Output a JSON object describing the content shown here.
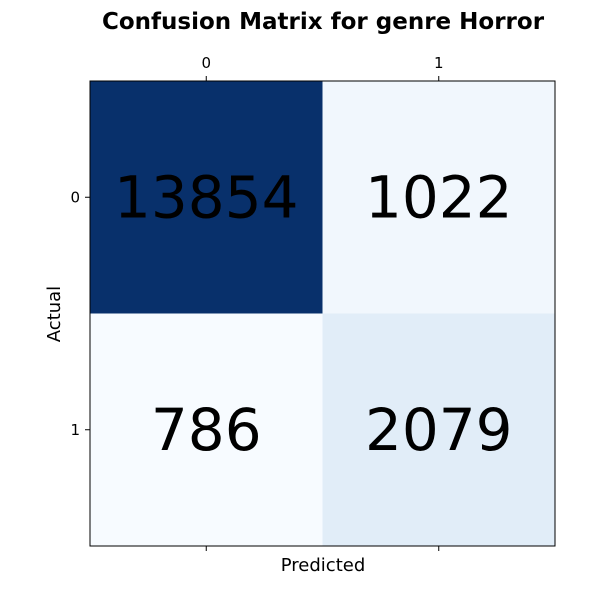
{
  "chart_data": {
    "type": "heatmap",
    "title": "Confusion Matrix for genre Horror",
    "xlabel": "Predicted",
    "ylabel": "Actual",
    "x_categories": [
      "0",
      "1"
    ],
    "y_categories": [
      "0",
      "1"
    ],
    "values": [
      [
        13854,
        1022
      ],
      [
        786,
        2079
      ]
    ],
    "cell_colors": [
      [
        "#08306b",
        "#f1f7fd"
      ],
      [
        "#f7fbff",
        "#e1edf8"
      ]
    ],
    "colormap": "Blues",
    "x_ticks_position": "top",
    "grid": false
  }
}
